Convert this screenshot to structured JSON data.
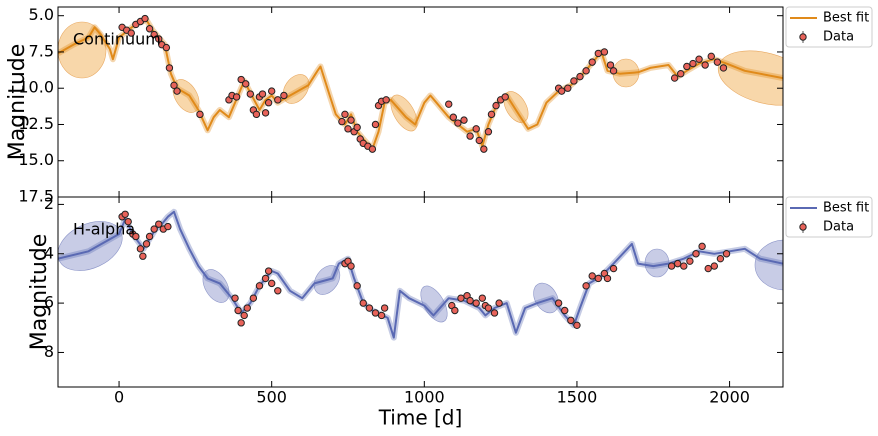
{
  "chart_data": [
    {
      "type": "line",
      "annotation": "Continuum",
      "ylabel": "Magnitude",
      "xlim": [
        -200,
        2175
      ],
      "ylim": [
        17.5,
        4.4
      ],
      "xticks": [
        0,
        500,
        1000,
        1500,
        2000
      ],
      "yticks": [
        {
          "value": 5,
          "label": "5.0"
        },
        7.5,
        {
          "value": 10,
          "label": "10.0"
        },
        12.5,
        {
          "value": 15,
          "label": "15.0"
        },
        17.5
      ],
      "series": [
        {
          "name": "Best fit",
          "kind": "line",
          "color": "#e08a1a",
          "x": [
            -200,
            -150,
            -100,
            -80,
            -60,
            -30,
            -20,
            0,
            30,
            60,
            90,
            110,
            130,
            150,
            170,
            190,
            230,
            260,
            290,
            310,
            330,
            360,
            390,
            410,
            430,
            460,
            480,
            500,
            520,
            560,
            620,
            650,
            660,
            690,
            710,
            740,
            760,
            780,
            800,
            830,
            850,
            870,
            890,
            940,
            970,
            1000,
            1020,
            1040,
            1060,
            1080,
            1110,
            1140,
            1170,
            1190,
            1210,
            1240,
            1270,
            1300,
            1340,
            1370,
            1400,
            1440,
            1480,
            1520,
            1560,
            1580,
            1600,
            1640,
            1700,
            1740,
            1800,
            1830,
            1860,
            1900,
            1950,
            1990,
            2050,
            2175
          ],
          "values": [
            7.6,
            7.0,
            6.5,
            5.8,
            6.3,
            7.3,
            8.0,
            6.5,
            6.0,
            5.5,
            5.3,
            6.0,
            6.5,
            7.0,
            9.0,
            10.0,
            10.5,
            11.5,
            12.9,
            12.0,
            11.5,
            12.0,
            10.5,
            9.5,
            10.3,
            11.5,
            10.8,
            10.5,
            11.0,
            10.5,
            9.8,
            8.8,
            8.5,
            10.5,
            11.8,
            12.5,
            11.8,
            13.0,
            13.5,
            14.2,
            13.0,
            11.0,
            10.8,
            12.0,
            12.5,
            11.0,
            10.5,
            11.0,
            11.5,
            12.0,
            12.5,
            13.0,
            12.8,
            14.0,
            12.5,
            11.0,
            10.5,
            11.5,
            12.8,
            12.5,
            11.0,
            10.2,
            9.8,
            9.0,
            8.0,
            7.5,
            8.8,
            9.0,
            8.9,
            8.6,
            8.4,
            9.2,
            8.8,
            8.3,
            8.0,
            8.3,
            8.8,
            9.3
          ]
        },
        {
          "name": "Data",
          "kind": "scatter",
          "color": "#e8635a",
          "x": [
            10,
            25,
            40,
            55,
            70,
            85,
            100,
            115,
            130,
            140,
            155,
            165,
            180,
            190,
            265,
            360,
            370,
            385,
            400,
            415,
            430,
            440,
            450,
            460,
            470,
            480,
            490,
            500,
            520,
            540,
            730,
            740,
            750,
            760,
            770,
            780,
            790,
            800,
            815,
            830,
            840,
            850,
            860,
            875,
            1080,
            1095,
            1110,
            1130,
            1150,
            1170,
            1180,
            1195,
            1210,
            1220,
            1235,
            1250,
            1265,
            1440,
            1450,
            1470,
            1490,
            1510,
            1530,
            1550,
            1570,
            1590,
            1610,
            1620,
            1820,
            1840,
            1860,
            1880,
            1900,
            1920,
            1940,
            1960,
            1980
          ],
          "values": [
            5.8,
            6.0,
            6.2,
            5.6,
            5.4,
            5.2,
            5.9,
            6.3,
            6.6,
            7.0,
            7.2,
            8.6,
            9.8,
            10.2,
            11.8,
            10.8,
            10.5,
            10.6,
            9.4,
            9.7,
            10.4,
            11.5,
            11.8,
            10.6,
            10.4,
            11.7,
            11.0,
            10.2,
            10.8,
            10.5,
            12.3,
            11.8,
            12.8,
            12.2,
            13.0,
            12.7,
            13.5,
            13.8,
            14.0,
            14.2,
            12.5,
            11.2,
            10.9,
            10.8,
            11.1,
            12.0,
            12.4,
            12.2,
            13.3,
            12.8,
            13.6,
            14.2,
            13.0,
            11.8,
            11.2,
            10.8,
            10.6,
            10.0,
            10.2,
            10.0,
            9.5,
            9.2,
            8.8,
            8.2,
            7.6,
            7.5,
            8.4,
            8.8,
            9.3,
            9.0,
            8.5,
            8.3,
            8.0,
            8.4,
            7.8,
            8.2,
            8.6
          ]
        }
      ]
    },
    {
      "type": "line",
      "annotation": "H-alpha",
      "ylabel": "Magnitude",
      "xlabel": "Time [d]",
      "xlim": [
        -200,
        2175
      ],
      "ylim": [
        9.4,
        1.7
      ],
      "xticks": [
        0,
        500,
        1000,
        1500,
        2000
      ],
      "yticks": [
        2,
        4,
        6,
        8
      ],
      "series": [
        {
          "name": "Best fit",
          "kind": "line",
          "color": "#5a69b3",
          "x": [
            -200,
            -100,
            0,
            20,
            50,
            80,
            100,
            120,
            140,
            160,
            180,
            200,
            230,
            260,
            290,
            330,
            370,
            400,
            430,
            460,
            500,
            520,
            560,
            600,
            640,
            700,
            720,
            750,
            770,
            800,
            830,
            880,
            900,
            920,
            950,
            1000,
            1030,
            1080,
            1130,
            1180,
            1200,
            1230,
            1270,
            1300,
            1330,
            1370,
            1420,
            1460,
            1490,
            1510,
            1540,
            1580,
            1620,
            1680,
            1700,
            1750,
            1800,
            1850,
            1900,
            1950,
            2000,
            2050,
            2100,
            2175
          ],
          "values": [
            4.2,
            3.9,
            3.2,
            2.6,
            3.3,
            3.8,
            3.4,
            3.0,
            2.8,
            2.5,
            2.3,
            3.0,
            3.8,
            4.5,
            5.0,
            5.2,
            5.8,
            6.4,
            6.0,
            5.3,
            4.7,
            4.8,
            5.5,
            5.8,
            5.2,
            5.0,
            4.4,
            4.2,
            5.0,
            6.0,
            6.3,
            6.6,
            7.4,
            5.5,
            5.8,
            6.1,
            6.5,
            5.8,
            5.9,
            6.2,
            6.5,
            6.2,
            6.0,
            7.2,
            6.2,
            6.0,
            5.8,
            6.5,
            6.9,
            6.2,
            5.2,
            4.9,
            4.4,
            3.6,
            4.4,
            4.5,
            4.4,
            4.2,
            3.9,
            4.0,
            3.9,
            3.8,
            4.2,
            4.4
          ]
        },
        {
          "name": "Data",
          "kind": "scatter",
          "color": "#e8635a",
          "x": [
            10,
            20,
            30,
            45,
            55,
            70,
            78,
            90,
            100,
            115,
            130,
            145,
            160,
            380,
            390,
            400,
            410,
            420,
            440,
            460,
            480,
            490,
            500,
            520,
            740,
            750,
            760,
            780,
            800,
            820,
            840,
            860,
            870,
            1090,
            1100,
            1120,
            1140,
            1150,
            1170,
            1190,
            1200,
            1210,
            1230,
            1245,
            1440,
            1460,
            1480,
            1500,
            1530,
            1550,
            1570,
            1590,
            1600,
            1620,
            1810,
            1830,
            1850,
            1870,
            1890,
            1910,
            1930,
            1950,
            1970,
            1990
          ],
          "values": [
            2.5,
            2.4,
            2.7,
            3.2,
            3.3,
            3.8,
            4.1,
            3.6,
            3.3,
            3.0,
            2.8,
            3.0,
            2.9,
            5.8,
            6.3,
            6.8,
            6.5,
            6.2,
            5.8,
            5.3,
            5.0,
            4.7,
            5.2,
            5.5,
            4.4,
            4.3,
            4.5,
            5.3,
            6.0,
            6.2,
            6.4,
            6.5,
            6.2,
            6.1,
            6.3,
            5.8,
            5.7,
            5.9,
            6.0,
            5.8,
            6.1,
            6.2,
            6.4,
            6.0,
            6.0,
            6.3,
            6.7,
            6.9,
            5.3,
            4.9,
            5.0,
            4.8,
            5.0,
            4.6,
            4.5,
            4.4,
            4.5,
            4.3,
            4.0,
            3.7,
            4.6,
            4.5,
            4.2,
            4.0
          ]
        }
      ]
    }
  ]
}
